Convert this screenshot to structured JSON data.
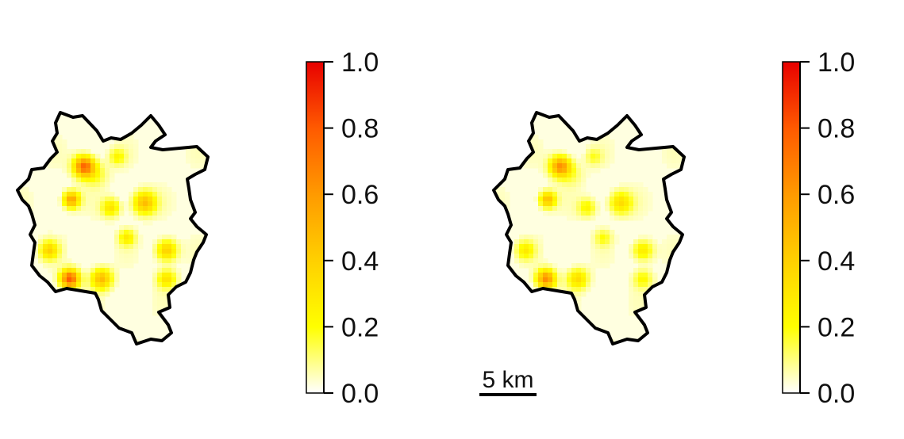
{
  "maps": [
    {
      "name": "left",
      "hotspots": [
        {
          "value": 0.72,
          "spread": 1.0
        },
        {
          "value": 0.55,
          "spread": 0.8
        },
        {
          "value": 0.3,
          "spread": 0.9
        },
        {
          "value": 0.45,
          "spread": 1.1
        },
        {
          "value": 0.2,
          "spread": 0.8
        },
        {
          "value": 0.4,
          "spread": 1.0
        },
        {
          "value": 0.35,
          "spread": 0.9
        },
        {
          "value": 0.78,
          "spread": 0.9
        },
        {
          "value": 0.45,
          "spread": 1.0
        },
        {
          "value": 0.3,
          "spread": 0.9
        },
        {
          "value": 0.25,
          "spread": 0.8
        },
        {
          "value": 0.15,
          "spread": 1.2
        }
      ]
    },
    {
      "name": "right",
      "hotspots": [
        {
          "value": 0.6,
          "spread": 1.0
        },
        {
          "value": 0.45,
          "spread": 0.8
        },
        {
          "value": 0.22,
          "spread": 0.9
        },
        {
          "value": 0.32,
          "spread": 1.1
        },
        {
          "value": 0.14,
          "spread": 0.8
        },
        {
          "value": 0.28,
          "spread": 1.0
        },
        {
          "value": 0.24,
          "spread": 0.9
        },
        {
          "value": 0.62,
          "spread": 0.9
        },
        {
          "value": 0.32,
          "spread": 1.0
        },
        {
          "value": 0.2,
          "spread": 0.9
        },
        {
          "value": 0.16,
          "spread": 0.8
        },
        {
          "value": 0.1,
          "spread": 1.2
        }
      ]
    }
  ],
  "colorbar": {
    "ticks": [
      "0.0",
      "0.2",
      "0.4",
      "0.6",
      "0.8",
      "1.0"
    ],
    "range": [
      0,
      1
    ],
    "colors": [
      "#ffffff",
      "#ffff00",
      "#ffd000",
      "#ff9a00",
      "#ff5a00",
      "#e80000"
    ]
  },
  "scalebar": {
    "label": "5 km"
  },
  "boundary_color": "#000000"
}
